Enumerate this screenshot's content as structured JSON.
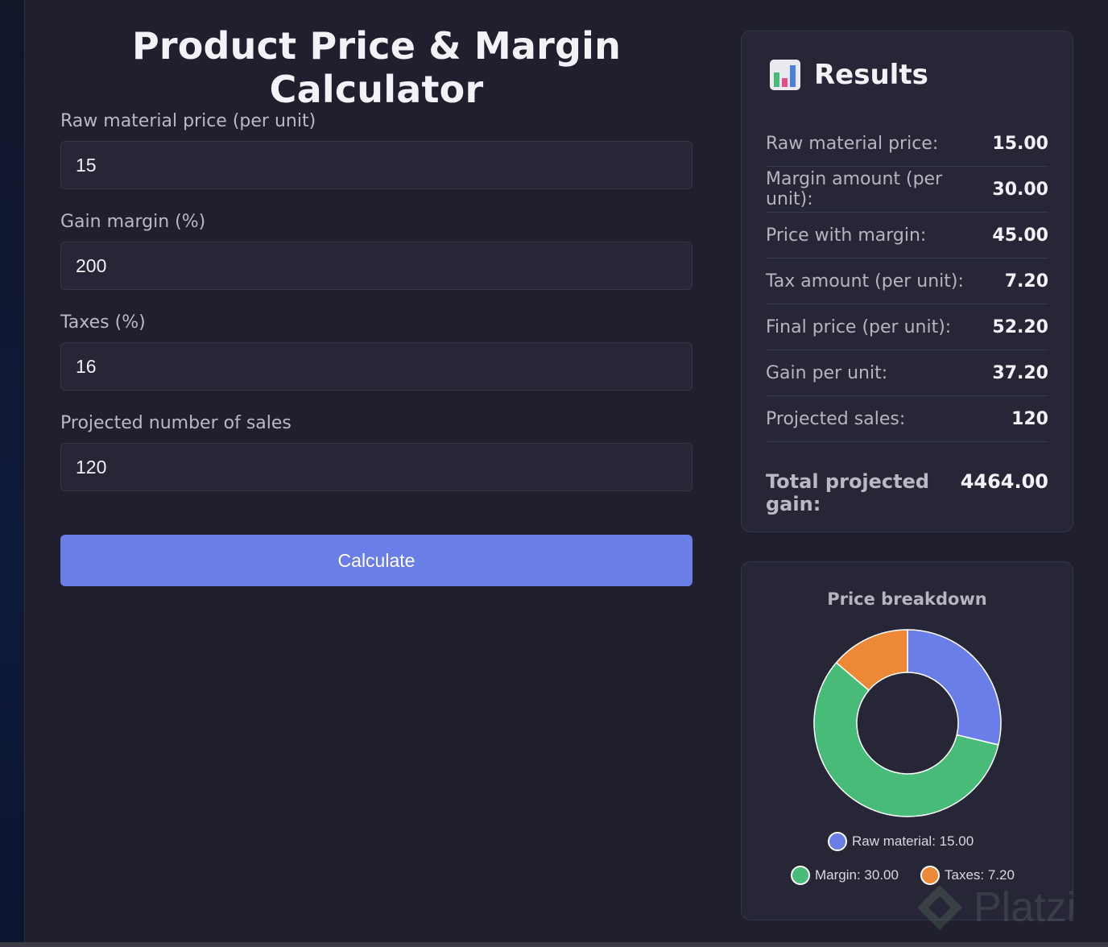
{
  "title": "Product Price & Margin Calculator",
  "form": {
    "fields": [
      {
        "label": "Raw material price (per unit)",
        "value": "15"
      },
      {
        "label": "Gain margin (%)",
        "value": "200"
      },
      {
        "label": "Taxes (%)",
        "value": "16"
      },
      {
        "label": "Projected number of sales",
        "value": "120"
      }
    ],
    "button_label": "Calculate"
  },
  "results": {
    "icon": "bar-chart-icon",
    "title": "Results",
    "rows": [
      {
        "label": "Raw material price:",
        "value": "15.00"
      },
      {
        "label": "Margin amount (per unit):",
        "value": "30.00"
      },
      {
        "label": "Price with margin:",
        "value": "45.00"
      },
      {
        "label": "Tax amount (per unit):",
        "value": "7.20"
      },
      {
        "label": "Final price (per unit):",
        "value": "52.20"
      },
      {
        "label": "Gain per unit:",
        "value": "37.20"
      },
      {
        "label": "Projected sales:",
        "value": "120"
      }
    ],
    "total_label": "Total projected gain:",
    "total_value": "4464.00"
  },
  "chart": {
    "title": "Price breakdown",
    "legend": [
      {
        "text": "Raw material: 15.00"
      },
      {
        "text": "Margin: 30.00"
      },
      {
        "text": "Taxes: 7.20"
      }
    ]
  },
  "chart_data": {
    "type": "pie",
    "title": "Price breakdown",
    "categories": [
      "Raw material",
      "Margin",
      "Taxes"
    ],
    "values": [
      15.0,
      30.0,
      7.2
    ],
    "colors": [
      "#6a7ee8",
      "#48bb78",
      "#ed8936"
    ],
    "donut": true,
    "legend": "bottom"
  },
  "watermark": {
    "text": "Platzi"
  }
}
